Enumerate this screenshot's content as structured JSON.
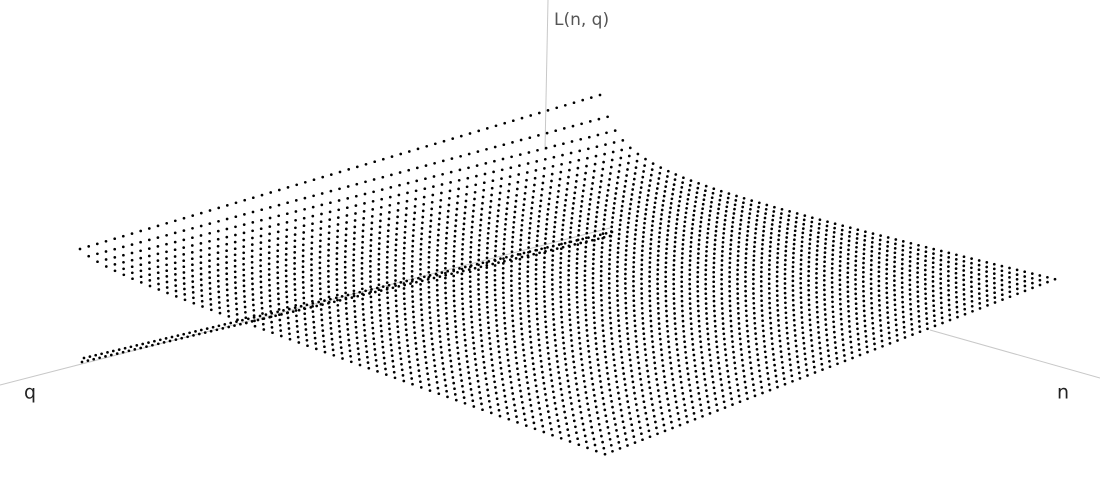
{
  "chart_data": {
    "type": "scatter3d",
    "z_label": "L(n, q)",
    "y_label": "q",
    "x_label": "n"
  }
}
